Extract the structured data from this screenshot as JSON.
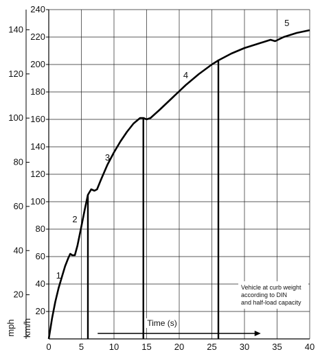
{
  "chart_data": {
    "type": "line",
    "xlabel": "Time (s)",
    "x_ticks": [
      0,
      5,
      10,
      15,
      20,
      25,
      30,
      35,
      40
    ],
    "xlim": [
      0,
      40
    ],
    "ylim_kmh": [
      0,
      240
    ],
    "kmh_ticks": [
      20,
      40,
      60,
      80,
      100,
      120,
      140,
      160,
      180,
      200,
      220,
      240
    ],
    "kmh_unit": "km/h",
    "mph_ticks": [
      20,
      40,
      60,
      80,
      100,
      120,
      140
    ],
    "mph_unit": "mph",
    "grid": true,
    "series": [
      {
        "x": [
          0,
          0.5,
          1.0,
          1.5,
          2.0,
          2.5,
          3.0,
          3.3,
          3.6,
          4.0,
          4.4,
          5.0,
          5.5,
          6.0,
          6.5,
          7.0,
          7.4,
          8.0,
          9.0,
          10.0,
          11.0,
          12.0,
          13.0,
          14.0,
          14.5,
          15.0,
          15.6,
          17.0,
          19.0,
          21.0,
          23.0,
          25.0,
          26.0,
          28.0,
          30.0,
          32.0,
          34.0,
          34.7,
          36.0,
          38.0,
          40.0
        ],
        "y": [
          0,
          15,
          27,
          37,
          45,
          53,
          59,
          62,
          61,
          61,
          68,
          82,
          94,
          105,
          109,
          108,
          109,
          116,
          127,
          136,
          144,
          151,
          157,
          161,
          161,
          160,
          161,
          167,
          176,
          185,
          193,
          200,
          203,
          208,
          212,
          215,
          218,
          217,
          220,
          223,
          225
        ]
      }
    ],
    "gear_labels": [
      {
        "label": "1",
        "x": 1.5,
        "y": 44
      },
      {
        "label": "2",
        "x": 4.0,
        "y": 85
      },
      {
        "label": "3",
        "x": 9.0,
        "y": 130
      },
      {
        "label": "4",
        "x": 21.0,
        "y": 190
      },
      {
        "label": "5",
        "x": 36.5,
        "y": 228
      }
    ],
    "shift_points": [
      {
        "x": 6.0,
        "y": 105
      },
      {
        "x": 14.5,
        "y": 161
      },
      {
        "x": 26.0,
        "y": 203
      }
    ],
    "time_arrow": {
      "from": 7.5,
      "to": 32.5,
      "y": 4
    },
    "annotation": [
      "Vehicle at curb weight",
      "according to DIN",
      "and half-load capacity"
    ]
  }
}
